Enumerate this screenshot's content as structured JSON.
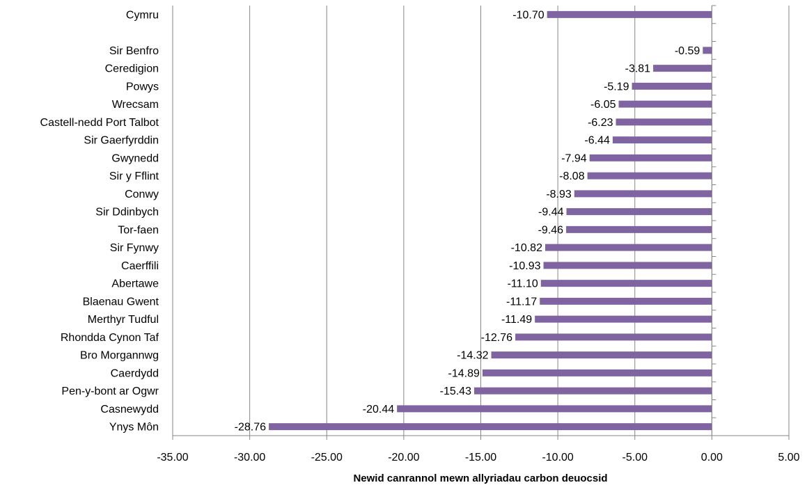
{
  "chart_data": {
    "type": "bar",
    "orientation": "horizontal",
    "title": "",
    "xlabel": "Newid canrannol mewn allyriadau carbon deuocsid",
    "ylabel": "",
    "xlim": [
      -35,
      5
    ],
    "xticks": [
      -35,
      -30,
      -25,
      -20,
      -15,
      -10,
      -5,
      0,
      5
    ],
    "xtick_labels": [
      "-35.00",
      "-30.00",
      "-25.00",
      "-20.00",
      "-15.00",
      "-10.00",
      "-5.00",
      "0.00",
      "5.00"
    ],
    "grid": true,
    "bar_color": "#8064A2",
    "categories": [
      "Cymru",
      "",
      "Sir Benfro",
      "Ceredigion",
      "Powys",
      "Wrecsam",
      "Castell-nedd Port Talbot",
      "Sir Gaerfyrddin",
      "Gwynedd",
      "Sir y Fflint",
      "Conwy",
      "Sir Ddinbych",
      "Tor-faen",
      "Sir Fynwy",
      "Caerffili",
      "Abertawe",
      "Blaenau Gwent",
      "Merthyr Tudful",
      "Rhondda Cynon Taf",
      "Bro Morgannwg",
      "Caerdydd",
      "Pen-y-bont ar Ogwr",
      "Casnewydd",
      "Ynys Môn"
    ],
    "values": [
      -10.7,
      null,
      -0.59,
      -3.81,
      -5.19,
      -6.05,
      -6.23,
      -6.44,
      -7.94,
      -8.08,
      -8.93,
      -9.44,
      -9.46,
      -10.82,
      -10.93,
      -11.1,
      -11.17,
      -11.49,
      -12.76,
      -14.32,
      -14.89,
      -15.43,
      -20.44,
      -28.76
    ],
    "value_labels": [
      "-10.70",
      "",
      "-0.59",
      "-3.81",
      "-5.19",
      "-6.05",
      "-6.23",
      "-6.44",
      "-7.94",
      "-8.08",
      "-8.93",
      "-9.44",
      "-9.46",
      "-10.82",
      "-10.93",
      "-11.10",
      "-11.17",
      "-11.49",
      "-12.76",
      "-14.32",
      "-14.89",
      "-15.43",
      "-20.44",
      "-28.76"
    ]
  }
}
